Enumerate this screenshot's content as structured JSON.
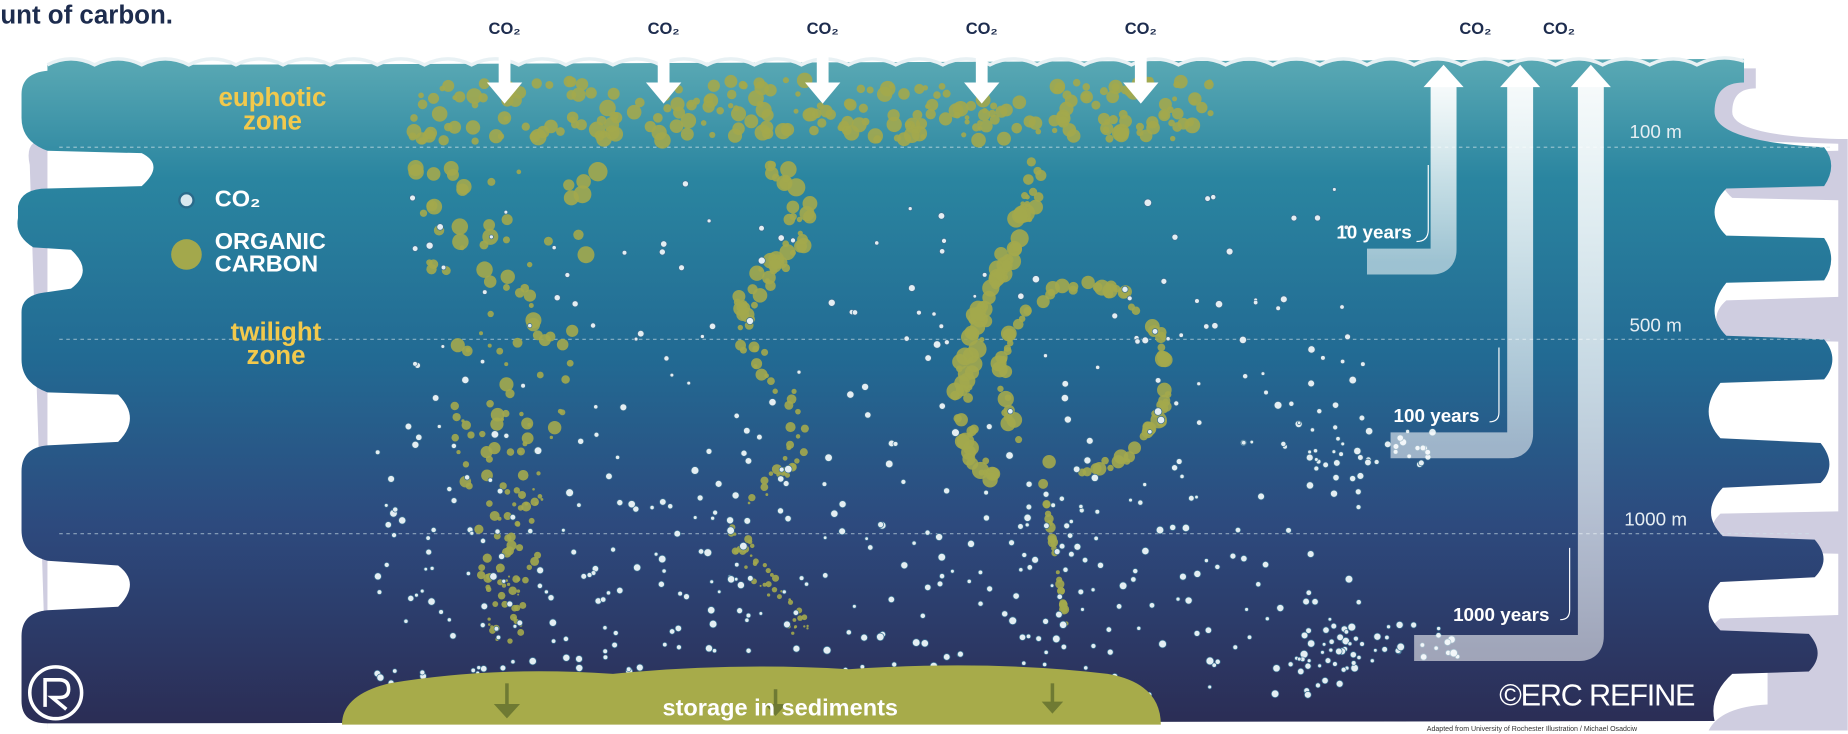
{
  "header": {
    "fragment": "unt of carbon."
  },
  "surface_labels": [
    "CO₂",
    "CO₂",
    "CO₂",
    "CO₂",
    "CO₂",
    "CO₂",
    "CO₂"
  ],
  "zones": [
    {
      "lines": [
        "euphotic",
        "zone"
      ]
    },
    {
      "lines": [
        "twilight",
        "zone"
      ]
    }
  ],
  "legend": [
    {
      "lines": [
        "CO₂"
      ]
    },
    {
      "lines": [
        "ORGANIC",
        "CARBON"
      ]
    }
  ],
  "depths": [
    "100 m",
    "500 m",
    "1000 m"
  ],
  "timescales": [
    "10 years",
    "100 years",
    "1000 years"
  ],
  "sediment_label": "storage in sediments",
  "copyright": "©ERC REFINE",
  "credit": "Adapted from University of Rochester Illustration / Michael Osadciw"
}
